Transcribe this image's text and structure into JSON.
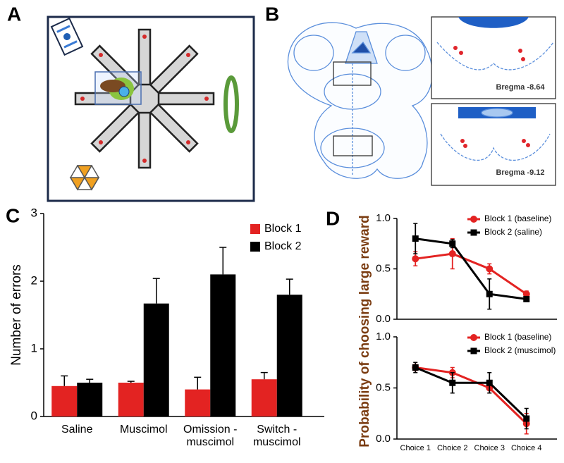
{
  "panels": {
    "a": {
      "label": "A"
    },
    "b": {
      "label": "B",
      "annotations": [
        "Bregma -8.64",
        "Bregma -9.12"
      ]
    },
    "c": {
      "label": "C"
    },
    "d": {
      "label": "D",
      "ylabel": "Probability of choosing large reward"
    }
  },
  "chart_data": [
    {
      "type": "bar",
      "ylabel": "Number of errors",
      "categories": [
        "Saline",
        "Muscimol",
        "Omission - muscimol",
        "Switch - muscimol"
      ],
      "series": [
        {
          "name": "Block 1",
          "color": "#e32322",
          "values": [
            0.45,
            0.5,
            0.4,
            0.55
          ],
          "errors": [
            0.15,
            0.02,
            0.18,
            0.1
          ]
        },
        {
          "name": "Block 2",
          "color": "#000000",
          "values": [
            0.5,
            1.67,
            2.1,
            1.8
          ],
          "errors": [
            0.05,
            0.37,
            0.4,
            0.23
          ]
        }
      ],
      "ylim": [
        0,
        3
      ],
      "yticks": [
        0,
        1,
        2,
        3
      ],
      "legend": "top-right"
    },
    {
      "type": "line",
      "categories": [
        null,
        null,
        null,
        null
      ],
      "series": [
        {
          "name": "Block 1 (baseline)",
          "color": "#e32322",
          "marker": "circle",
          "values": [
            0.6,
            0.65,
            0.5,
            0.25
          ],
          "errors": [
            0.07,
            0.15,
            0.05,
            0.03
          ]
        },
        {
          "name": "Block 2 (saline)",
          "color": "#000000",
          "marker": "square",
          "values": [
            0.8,
            0.75,
            0.25,
            0.2
          ],
          "errors": [
            0.15,
            0.04,
            0.15,
            0.02
          ]
        }
      ],
      "ylim": [
        0,
        1
      ],
      "yticks": [
        {
          "value": 0,
          "label": "0.0"
        },
        {
          "value": 0.5,
          "label": "0.5"
        },
        {
          "value": 1,
          "label": "1.0"
        }
      ],
      "legend": "top-right"
    },
    {
      "type": "line",
      "categories": [
        "Choice 1",
        "Choice 2",
        "Choice 3",
        "Choice 4"
      ],
      "series": [
        {
          "name": "Block 1 (baseline)",
          "color": "#e32322",
          "marker": "circle",
          "values": [
            0.7,
            0.65,
            0.5,
            0.15
          ],
          "errors": [
            0.03,
            0.05,
            0.05,
            0.1
          ]
        },
        {
          "name": "Block 2 (muscimol)",
          "color": "#000000",
          "marker": "square",
          "values": [
            0.7,
            0.55,
            0.55,
            0.2
          ],
          "errors": [
            0.05,
            0.1,
            0.1,
            0.1
          ]
        }
      ],
      "ylim": [
        0,
        1
      ],
      "yticks": [
        {
          "value": 0,
          "label": "0.0"
        },
        {
          "value": 0.5,
          "label": "0.5"
        },
        {
          "value": 1,
          "label": "1.0"
        }
      ],
      "legend": "top-right"
    }
  ]
}
